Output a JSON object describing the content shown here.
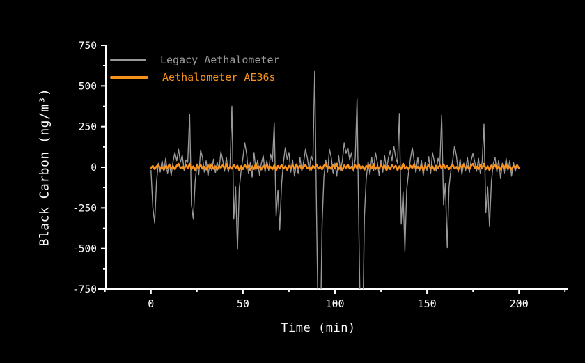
{
  "chart_data": {
    "type": "line",
    "title": "",
    "xlabel": "Time (min)",
    "ylabel": "Black Carbon (ng/m³)",
    "xlim": [
      -29,
      227
    ],
    "ylim": [
      -750,
      750
    ],
    "x_ticks": [
      0,
      50,
      100,
      150,
      200
    ],
    "x_minor_ticks": [
      -25,
      25,
      75,
      125,
      175,
      225
    ],
    "y_ticks": [
      750,
      500,
      250,
      0,
      -250,
      -500,
      -750
    ],
    "y_minor_ticks": [
      625,
      375,
      125,
      -125,
      -375,
      -625
    ],
    "grid": false,
    "legend_position": "upper-left",
    "x_start": 0,
    "x_step": 1,
    "style": {
      "background": "#000000",
      "axis": "#FFFFFF",
      "tick_label_color": "#FFFFFF"
    },
    "series": [
      {
        "name": "Legacy Aethalometer",
        "color": "#9A9A9A",
        "width": 1.4,
        "values": [
          -20,
          -245,
          -343,
          -90,
          25,
          -30,
          40,
          -25,
          55,
          -40,
          20,
          -50,
          35,
          90,
          40,
          110,
          30,
          75,
          -20,
          45,
          30,
          325,
          -230,
          -320,
          -90,
          20,
          -45,
          105,
          60,
          -30,
          40,
          -55,
          25,
          -20,
          50,
          -35,
          30,
          -15,
          95,
          45,
          -25,
          60,
          -30,
          20,
          375,
          -320,
          -120,
          -505,
          -130,
          -20,
          60,
          150,
          80,
          -40,
          30,
          -60,
          90,
          -20,
          45,
          -50,
          25,
          70,
          -30,
          40,
          -20,
          80,
          35,
          270,
          -300,
          -140,
          -385,
          -100,
          30,
          120,
          50,
          90,
          -30,
          45,
          -55,
          20,
          -40,
          60,
          -25,
          35,
          110,
          55,
          -20,
          70,
          40,
          590,
          -300,
          -1060,
          -1080,
          -350,
          -60,
          45,
          -30,
          110,
          60,
          -40,
          25,
          -55,
          70,
          -20,
          40,
          150,
          85,
          120,
          45,
          90,
          -25,
          55,
          420,
          -380,
          -1100,
          -1060,
          -300,
          -70,
          35,
          -45,
          60,
          -20,
          90,
          30,
          -50,
          45,
          -30,
          70,
          -20,
          55,
          100,
          40,
          130,
          60,
          25,
          330,
          -350,
          -150,
          -515,
          -140,
          -30,
          50,
          120,
          45,
          -35,
          60,
          -25,
          40,
          -50,
          30,
          -20,
          65,
          -40,
          90,
          35,
          -25,
          55,
          20,
          320,
          -230,
          -100,
          -495,
          -120,
          -20,
          45,
          130,
          70,
          -30,
          50,
          -45,
          25,
          -20,
          60,
          -35,
          40,
          85,
          30,
          -25,
          55,
          -40,
          35,
          265,
          -280,
          -120,
          -365,
          -90,
          20,
          60,
          -30,
          45,
          -70,
          25,
          -40,
          55,
          -20,
          40,
          -55,
          30,
          -25,
          15,
          -10
        ]
      },
      {
        "name": "Aethalometer AE36s",
        "color": "#F9921D",
        "width": 2.6,
        "values": [
          -4,
          8,
          -12,
          5,
          14,
          -7,
          2,
          -16,
          9,
          -3,
          17,
          -9,
          6,
          -13,
          10,
          21,
          -5,
          3,
          -11,
          15,
          -7,
          22,
          -13,
          6,
          -18,
          11,
          -4,
          16,
          -9,
          3,
          -14,
          12,
          -6,
          19,
          -10,
          5,
          -15,
          8,
          -3,
          13,
          -8,
          20,
          -12,
          4,
          -9,
          16,
          -5,
          10,
          -19,
          7,
          -12,
          15,
          -3,
          9,
          -17,
          6,
          -11,
          22,
          -8,
          4,
          -14,
          10,
          -6,
          18,
          -9,
          3,
          -13,
          12,
          -20,
          8,
          -5,
          15,
          -10,
          6,
          -16,
          9,
          -4,
          13,
          -8,
          17,
          -4,
          8,
          -12,
          5,
          14,
          -7,
          2,
          -16,
          9,
          -3,
          17,
          -9,
          6,
          -13,
          10,
          21,
          -5,
          3,
          -11,
          15,
          -7,
          22,
          -13,
          6,
          -18,
          11,
          -4,
          16,
          -9,
          3,
          -14,
          12,
          -6,
          19,
          -10,
          5,
          -15,
          8,
          -3,
          13,
          -8,
          20,
          -12,
          4,
          -9,
          16,
          -5,
          10,
          -19,
          7,
          -12,
          15,
          -3,
          9,
          -17,
          6,
          -11,
          22,
          -8,
          4,
          -14,
          10,
          -6,
          18,
          -9,
          3,
          -13,
          12,
          -20,
          8,
          -5,
          15,
          -10,
          6,
          -16,
          9,
          -4,
          13,
          -8,
          17,
          -4,
          8,
          -12,
          5,
          14,
          -7,
          2,
          -16,
          9,
          -3,
          17,
          -9,
          6,
          -13,
          10,
          21,
          -5,
          3,
          -11,
          15,
          -7,
          22,
          -13,
          6,
          -18,
          11,
          -4,
          16,
          -9,
          3,
          -14,
          12,
          -6,
          19,
          -10,
          5,
          -15,
          8,
          -3,
          13,
          -6
        ]
      }
    ]
  }
}
